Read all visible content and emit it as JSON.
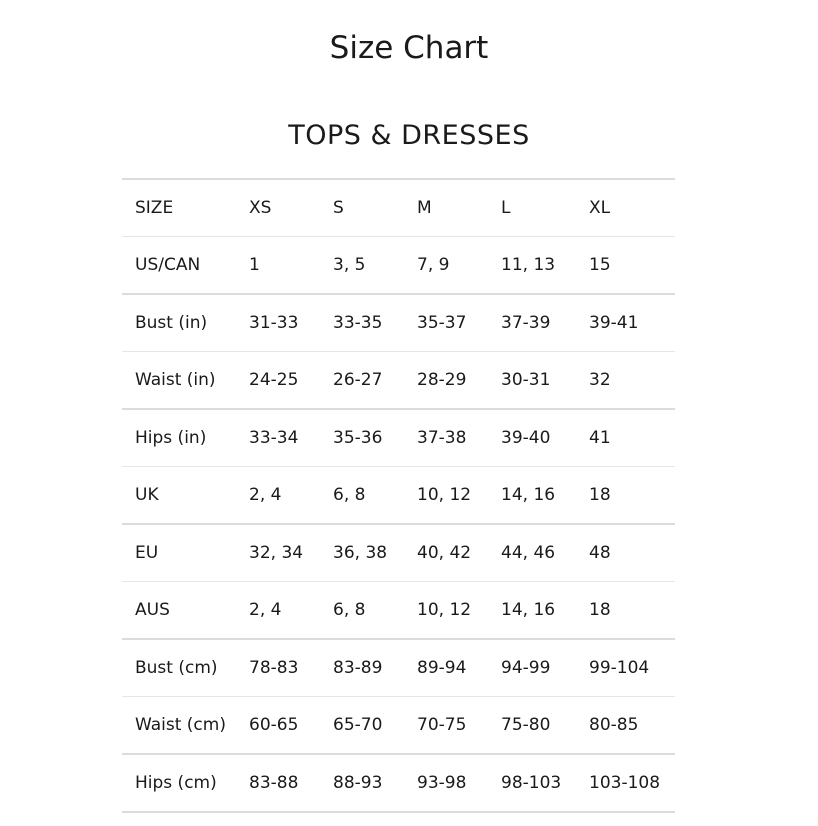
{
  "title": "Size Chart",
  "section_title": "TOPS & DRESSES",
  "table": {
    "rows": [
      [
        "SIZE",
        "XS",
        "S",
        "M",
        "L",
        "XL"
      ],
      [
        "US/CAN",
        "1",
        "3, 5",
        "7, 9",
        "11, 13",
        "15"
      ],
      [
        "Bust (in)",
        "31-33",
        "33-35",
        "35-37",
        "37-39",
        "39-41"
      ],
      [
        "Waist (in)",
        "24-25",
        "26-27",
        "28-29",
        "30-31",
        "32"
      ],
      [
        "Hips (in)",
        "33-34",
        "35-36",
        "37-38",
        "39-40",
        "41"
      ],
      [
        "UK",
        "2, 4",
        "6, 8",
        "10, 12",
        "14, 16",
        "18"
      ],
      [
        "EU",
        "32, 34",
        "36, 38",
        "40, 42",
        "44, 46",
        "48"
      ],
      [
        "AUS",
        "2, 4",
        "6, 8",
        "10, 12",
        "14, 16",
        "18"
      ],
      [
        "Bust (cm)",
        "78-83",
        "83-89",
        "89-94",
        "94-99",
        "99-104"
      ],
      [
        "Waist (cm)",
        "60-65",
        "65-70",
        "70-75",
        "75-80",
        "80-85"
      ],
      [
        "Hips (cm)",
        "83-88",
        "88-93",
        "93-98",
        "98-103",
        "103-108"
      ]
    ]
  }
}
